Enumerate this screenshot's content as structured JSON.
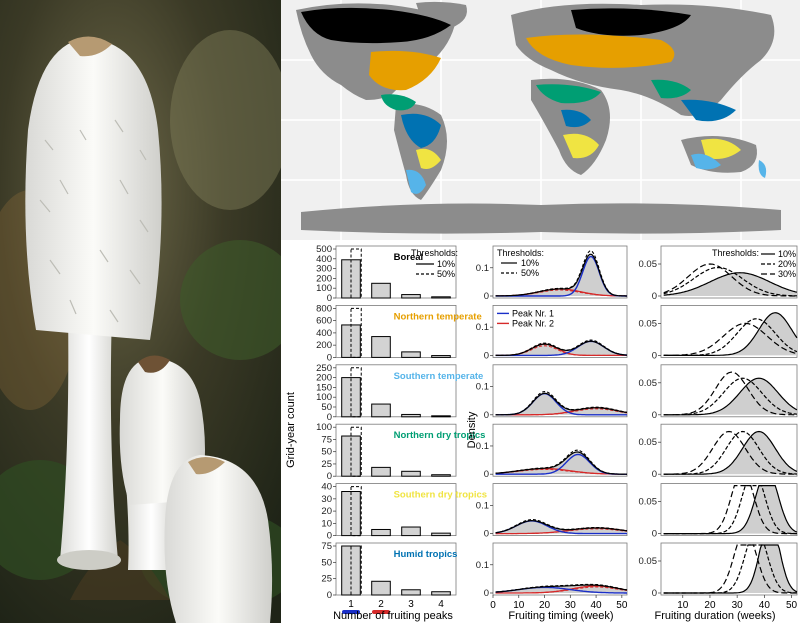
{
  "colors": {
    "boreal": "#000000",
    "northern_temperate": "#E69F00",
    "southern_temperate": "#56B4E9",
    "northern_dry_tropics": "#009E73",
    "southern_dry_tropics": "#F0E442",
    "humid_tropics": "#0072B2",
    "land": "#8c8c8c",
    "peak1": "#1a2fc8",
    "peak2": "#d62a2a",
    "panel_border": "#7a7a7a"
  },
  "photo": {
    "subject": "shaggy-ink-cap-mushrooms"
  },
  "chart_data": [
    {
      "type": "bar",
      "id": "fruiting-peaks",
      "ylabel": "Grid-year count",
      "xlabel": "Number of fruiting peaks",
      "categories": [
        "1",
        "2",
        "3",
        "4"
      ],
      "legend": {
        "title": "Thresholds:",
        "items": [
          "10%",
          "50%"
        ],
        "position": "top-right"
      },
      "marker_colors": [
        "#1a2fc8",
        "#d62a2a"
      ],
      "panels": [
        {
          "region": "Boreal",
          "color_key": "boreal",
          "ylim": [
            0,
            500
          ],
          "yticks": [
            "0",
            "100",
            "200",
            "300",
            "400",
            "500"
          ],
          "series": [
            {
              "name": "10%",
              "values": [
                390,
                150,
                35,
                12
              ]
            },
            {
              "name": "50%",
              "values": [
                500,
                0,
                0,
                0
              ]
            }
          ]
        },
        {
          "region": "Northern temperate",
          "color_key": "northern_temperate",
          "ylim": [
            0,
            800
          ],
          "yticks": [
            "0",
            "200",
            "400",
            "600",
            "800"
          ],
          "series": [
            {
              "name": "10%",
              "values": [
                530,
                340,
                90,
                30
              ]
            },
            {
              "name": "50%",
              "values": [
                800,
                0,
                0,
                0
              ]
            }
          ]
        },
        {
          "region": "Southern temperate",
          "color_key": "southern_temperate",
          "ylim": [
            0,
            250
          ],
          "yticks": [
            "0",
            "50",
            "100",
            "150",
            "200",
            "250"
          ],
          "series": [
            {
              "name": "10%",
              "values": [
                200,
                65,
                12,
                5
              ]
            },
            {
              "name": "50%",
              "values": [
                250,
                0,
                0,
                0
              ]
            }
          ]
        },
        {
          "region": "Northern dry tropics",
          "color_key": "northern_dry_tropics",
          "ylim": [
            0,
            100
          ],
          "yticks": [
            "0",
            "25",
            "50",
            "75",
            "100"
          ],
          "series": [
            {
              "name": "10%",
              "values": [
                82,
                18,
                10,
                3
              ]
            },
            {
              "name": "50%",
              "values": [
                100,
                0,
                0,
                0
              ]
            }
          ]
        },
        {
          "region": "Southern dry tropics",
          "color_key": "southern_dry_tropics",
          "ylim": [
            0,
            40
          ],
          "yticks": [
            "0",
            "10",
            "20",
            "30",
            "40"
          ],
          "series": [
            {
              "name": "10%",
              "values": [
                36,
                5,
                7,
                2
              ]
            },
            {
              "name": "50%",
              "values": [
                40,
                0,
                0,
                0
              ]
            }
          ]
        },
        {
          "region": "Humid tropics",
          "color_key": "humid_tropics",
          "ylim": [
            0,
            75
          ],
          "yticks": [
            "0",
            "25",
            "50",
            "75"
          ],
          "series": [
            {
              "name": "10%",
              "values": [
                75,
                21,
                8,
                5
              ]
            },
            {
              "name": "50%",
              "values": [
                75,
                0,
                0,
                0
              ]
            }
          ]
        }
      ]
    },
    {
      "type": "line",
      "id": "fruiting-timing",
      "ylabel": "Density",
      "xlabel": "Fruiting timing (week)",
      "xlim": [
        0,
        52
      ],
      "xticks": [
        "0",
        "10",
        "20",
        "30",
        "40",
        "50"
      ],
      "ylim": [
        0,
        0.17
      ],
      "yticks": [
        "0",
        "0.1"
      ],
      "legends": [
        {
          "title": "Thresholds:",
          "items": [
            "10%",
            "50%"
          ],
          "panel": 0,
          "position": "top-left"
        },
        {
          "title": "",
          "items": [
            "Peak Nr. 1",
            "Peak Nr. 2"
          ],
          "panel": 1,
          "position": "top-left"
        }
      ],
      "panels": [
        {
          "region": "Boreal",
          "components": [
            {
              "mu": 38,
              "sd": 3.2,
              "amp": 0.14
            },
            {
              "mu": 26,
              "sd": 8,
              "amp": 0.025
            }
          ]
        },
        {
          "region": "Northern temperate",
          "components": [
            {
              "mu": 38,
              "sd": 5,
              "amp": 0.05
            },
            {
              "mu": 20,
              "sd": 5,
              "amp": 0.04
            }
          ]
        },
        {
          "region": "Southern temperate",
          "components": [
            {
              "mu": 20,
              "sd": 4.5,
              "amp": 0.075
            },
            {
              "mu": 40,
              "sd": 8,
              "amp": 0.025
            }
          ]
        },
        {
          "region": "Northern dry tropics",
          "components": [
            {
              "mu": 33,
              "sd": 4.5,
              "amp": 0.07
            },
            {
              "mu": 20,
              "sd": 10,
              "amp": 0.02
            }
          ]
        },
        {
          "region": "Southern dry tropics",
          "components": [
            {
              "mu": 15,
              "sd": 6,
              "amp": 0.045
            },
            {
              "mu": 40,
              "sd": 10,
              "amp": 0.02
            }
          ]
        },
        {
          "region": "Humid tropics",
          "components": [
            {
              "mu": 20,
              "sd": 10,
              "amp": 0.02
            },
            {
              "mu": 40,
              "sd": 9,
              "amp": 0.025
            }
          ]
        }
      ]
    },
    {
      "type": "area",
      "id": "fruiting-duration",
      "xlabel": "Fruiting duration (weeks)",
      "xlim": [
        2,
        52
      ],
      "xticks": [
        "10",
        "20",
        "30",
        "40",
        "50"
      ],
      "ylim": [
        0,
        0.075
      ],
      "yticks": [
        "0",
        "0.05"
      ],
      "legend": {
        "title": "Thresholds:",
        "items": [
          "10%",
          "20%",
          "30%"
        ],
        "position": "top-right"
      },
      "panels": [
        {
          "region": "Boreal",
          "curves": [
            {
              "name": "10%",
              "mu": 31,
              "sd": 11
            },
            {
              "name": "20%",
              "mu": 23,
              "sd": 9
            },
            {
              "name": "30%",
              "mu": 20,
              "sd": 8
            }
          ]
        },
        {
          "region": "Northern temperate",
          "curves": [
            {
              "name": "10%",
              "mu": 44,
              "sd": 6
            },
            {
              "name": "20%",
              "mu": 37,
              "sd": 7
            },
            {
              "name": "30%",
              "mu": 33,
              "sd": 8
            }
          ]
        },
        {
          "region": "Southern temperate",
          "curves": [
            {
              "name": "10%",
              "mu": 38,
              "sd": 7
            },
            {
              "name": "20%",
              "mu": 32,
              "sd": 7
            },
            {
              "name": "30%",
              "mu": 28,
              "sd": 6
            }
          ]
        },
        {
          "region": "Northern dry tropics",
          "curves": [
            {
              "name": "10%",
              "mu": 38,
              "sd": 6
            },
            {
              "name": "20%",
              "mu": 32,
              "sd": 6
            },
            {
              "name": "30%",
              "mu": 27,
              "sd": 6
            }
          ]
        },
        {
          "region": "Southern dry tropics",
          "curves": [
            {
              "name": "10%",
              "mu": 41,
              "sd": 4
            },
            {
              "name": "20%",
              "mu": 36,
              "sd": 4
            },
            {
              "name": "30%",
              "mu": 32,
              "sd": 4
            }
          ]
        },
        {
          "region": "Humid tropics",
          "curves": [
            {
              "name": "10%",
              "mu": 42,
              "sd": 3.5
            },
            {
              "name": "20%",
              "mu": 37,
              "sd": 4
            },
            {
              "name": "30%",
              "mu": 33,
              "sd": 4
            }
          ]
        }
      ]
    }
  ]
}
